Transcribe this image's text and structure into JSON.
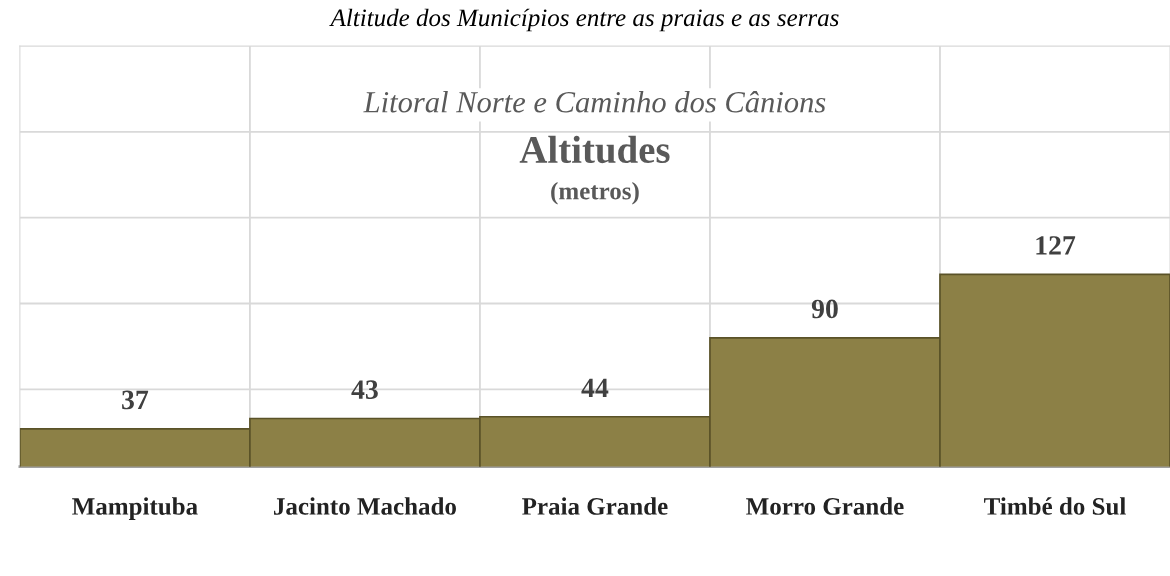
{
  "chart_data": {
    "type": "bar",
    "title": "Altitudes",
    "subtitle": "(metros)",
    "annotations": [
      "Altitude dos Municípios entre as praias e as serras",
      "Litoral Norte e Caminho dos Cânions"
    ],
    "categories": [
      "Mampituba",
      "Jacinto Machado",
      "Praia Grande",
      "Morro Grande",
      "Timbé do Sul"
    ],
    "values": [
      37,
      43,
      44,
      90,
      127
    ],
    "color": "#8c8046",
    "data_labels": true,
    "ylim": [
      15,
      260
    ],
    "yticks": [
      {
        "value": 60,
        "label": null
      },
      {
        "value": 110,
        "label": null
      },
      {
        "value": 160,
        "label": null
      },
      {
        "value": 210,
        "label": null
      }
    ],
    "grid": true,
    "legend": false
  }
}
